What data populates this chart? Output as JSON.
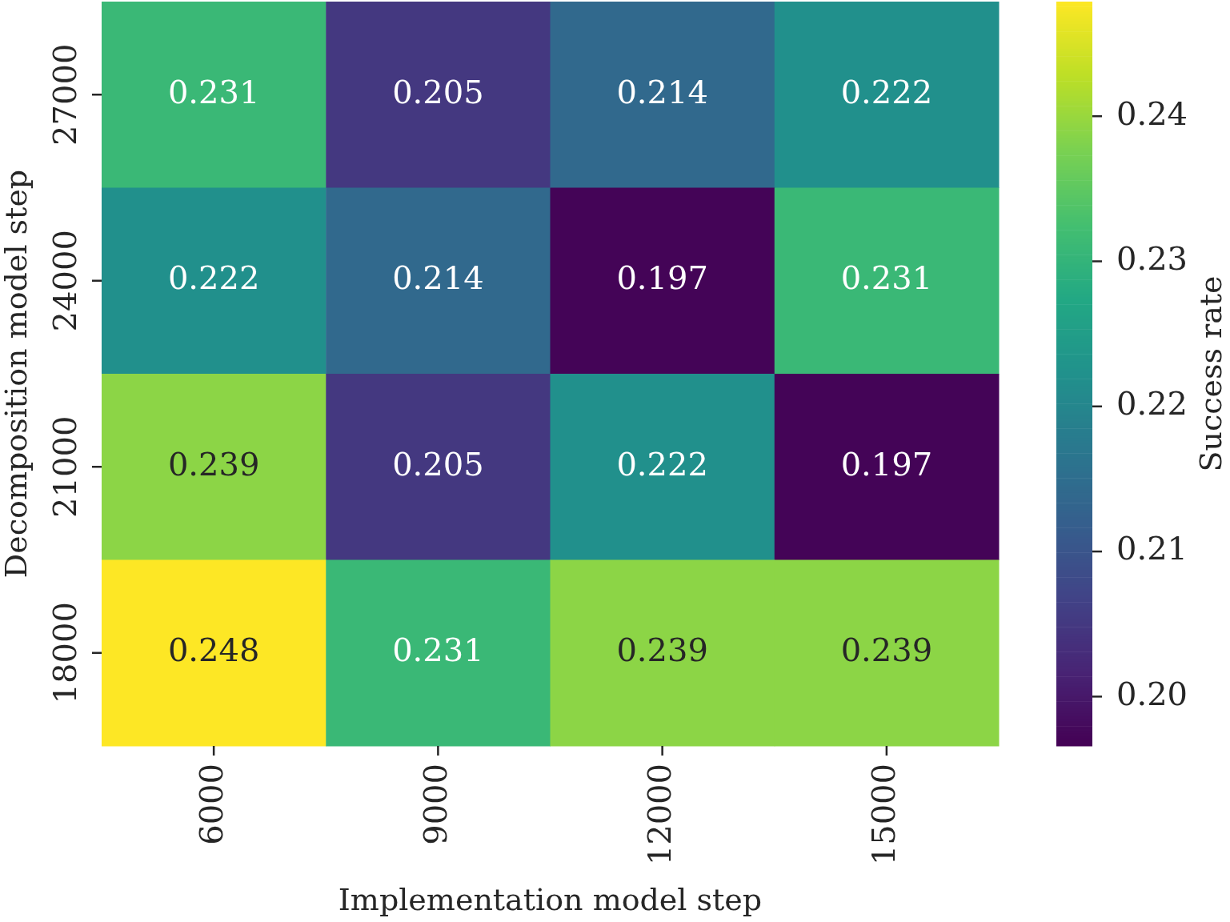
{
  "chart_data": {
    "type": "heatmap",
    "xlabel": "Implementation model step",
    "ylabel": "Decomposition model step",
    "clabel": "Success rate",
    "categories": [
      "6000",
      "9000",
      "12000",
      "15000"
    ],
    "y_categories": [
      "27000",
      "24000",
      "21000",
      "18000"
    ],
    "cells": [
      [
        0.231,
        0.205,
        0.214,
        0.222
      ],
      [
        0.222,
        0.214,
        0.197,
        0.231
      ],
      [
        0.239,
        0.205,
        0.222,
        0.197
      ],
      [
        0.248,
        0.231,
        0.239,
        0.239
      ]
    ],
    "data_labels": true,
    "clim": [
      0.1966,
      0.2479
    ],
    "cticks": [
      {
        "value": 0.2,
        "label": "0.20"
      },
      {
        "value": 0.21,
        "label": "0.21"
      },
      {
        "value": 0.22,
        "label": "0.22"
      },
      {
        "value": 0.23,
        "label": "0.23"
      },
      {
        "value": 0.24,
        "label": "0.24"
      }
    ]
  }
}
